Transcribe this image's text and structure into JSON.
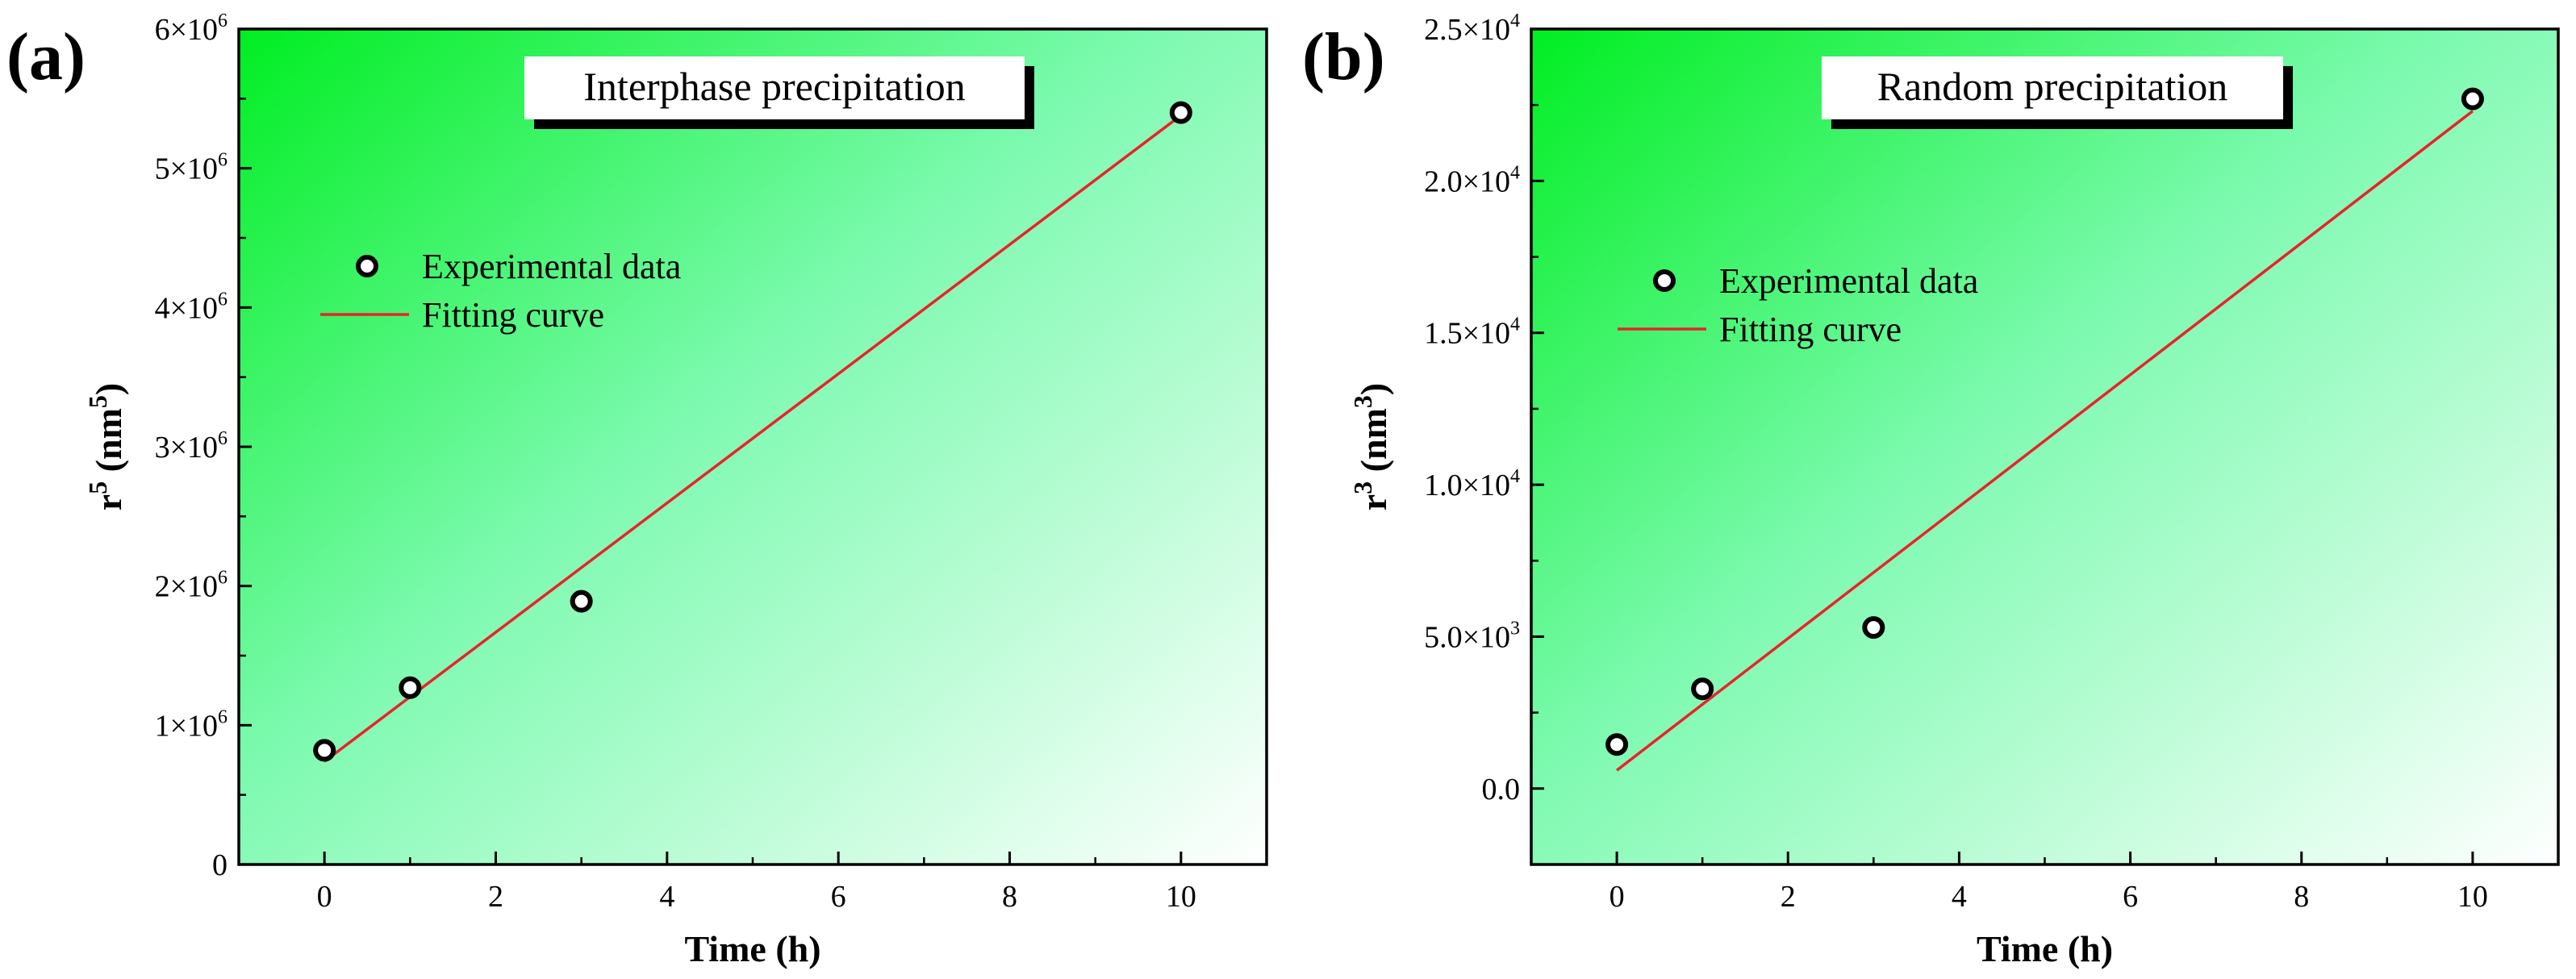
{
  "colors": {
    "bg_strong": "#00ee22",
    "bg_light": "#ffffff",
    "fit_line": "#e8232a",
    "marker_edge": "#000000",
    "marker_face": "#ffffff"
  },
  "chart_data": [
    {
      "type": "scatter",
      "panel_label": "(a)",
      "title": "Interphase precipitation",
      "xlabel": "Time (h)",
      "ylabel_base": "r",
      "ylabel_exp": "5",
      "ylabel_unit_open": " (nm",
      "ylabel_unit_exp": "5",
      "ylabel_unit_close": ")",
      "xlim": [
        -1,
        11
      ],
      "ylim": [
        0,
        6000000
      ],
      "x_ticks": [
        {
          "value": 0,
          "label": "0"
        },
        {
          "value": 2,
          "label": "2"
        },
        {
          "value": 4,
          "label": "4"
        },
        {
          "value": 6,
          "label": "6"
        },
        {
          "value": 8,
          "label": "8"
        },
        {
          "value": 10,
          "label": "10"
        }
      ],
      "y_ticks": [
        {
          "value": 0,
          "mant": "0",
          "exp": ""
        },
        {
          "value": 1000000,
          "mant": "1×10",
          "exp": "6"
        },
        {
          "value": 2000000,
          "mant": "2×10",
          "exp": "6"
        },
        {
          "value": 3000000,
          "mant": "3×10",
          "exp": "6"
        },
        {
          "value": 4000000,
          "mant": "4×10",
          "exp": "6"
        },
        {
          "value": 5000000,
          "mant": "5×10",
          "exp": "6"
        },
        {
          "value": 6000000,
          "mant": "6×10",
          "exp": "6"
        }
      ],
      "legend": [
        "Experimental data",
        "Fitting curve"
      ],
      "series": [
        {
          "name": "Experimental data",
          "kind": "points",
          "x": [
            0,
            1,
            3,
            10
          ],
          "y": [
            820000,
            1270000,
            1890000,
            5400000
          ]
        },
        {
          "name": "Fitting curve",
          "kind": "line",
          "x": [
            0,
            10
          ],
          "y": [
            740000,
            5380000
          ]
        }
      ]
    },
    {
      "type": "scatter",
      "panel_label": "(b)",
      "title": "Random precipitation",
      "xlabel": "Time (h)",
      "ylabel_base": "r",
      "ylabel_exp": "3",
      "ylabel_unit_open": " (nm",
      "ylabel_unit_exp": "3",
      "ylabel_unit_close": ")",
      "xlim": [
        -1,
        11
      ],
      "ylim": [
        -2500,
        25000
      ],
      "x_ticks": [
        {
          "value": 0,
          "label": "0"
        },
        {
          "value": 2,
          "label": "2"
        },
        {
          "value": 4,
          "label": "4"
        },
        {
          "value": 6,
          "label": "6"
        },
        {
          "value": 8,
          "label": "8"
        },
        {
          "value": 10,
          "label": "10"
        }
      ],
      "y_ticks": [
        {
          "value": 0,
          "mant": "0.0",
          "exp": ""
        },
        {
          "value": 5000,
          "mant": "5.0×10",
          "exp": "3"
        },
        {
          "value": 10000,
          "mant": "1.0×10",
          "exp": "4"
        },
        {
          "value": 15000,
          "mant": "1.5×10",
          "exp": "4"
        },
        {
          "value": 20000,
          "mant": "2.0×10",
          "exp": "4"
        },
        {
          "value": 25000,
          "mant": "2.5×10",
          "exp": "4"
        }
      ],
      "legend": [
        "Experimental data",
        "Fitting curve"
      ],
      "series": [
        {
          "name": "Experimental data",
          "kind": "points",
          "x": [
            0,
            1,
            3,
            10
          ],
          "y": [
            1450,
            3280,
            5300,
            22700
          ]
        },
        {
          "name": "Fitting curve",
          "kind": "line",
          "x": [
            0,
            10
          ],
          "y": [
            600,
            22300
          ]
        }
      ]
    }
  ]
}
